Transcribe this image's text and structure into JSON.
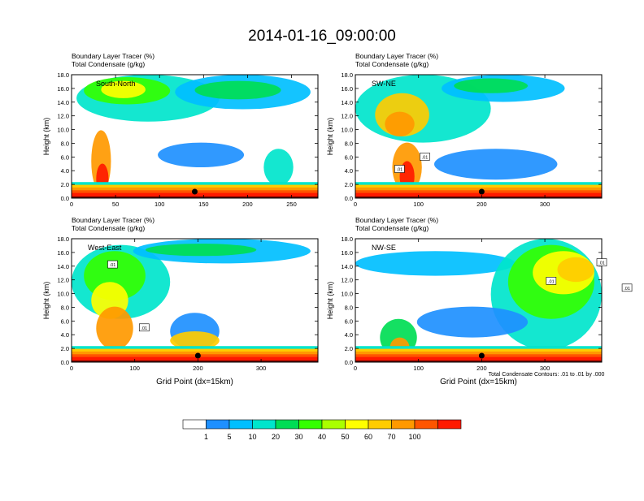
{
  "page_title": "2014-01-16_09:00:00",
  "chart_data": [
    {
      "type": "heatmap",
      "panel_label": "South-North",
      "title_line1": "Boundary Layer Tracer   (%)",
      "title_line2": "Total Condensate   (g/kg)",
      "ylabel": "Height (km)",
      "xlabel": "",
      "xlim": [
        0,
        280
      ],
      "ylim": [
        0,
        18
      ],
      "x_ticks": [
        "0",
        "50",
        "100",
        "150",
        "200",
        "250"
      ],
      "y_ticks": [
        "0.0",
        "2.0",
        "4.0",
        "6.0",
        "8.0",
        "10.0",
        "12.0",
        "14.0",
        "16.0",
        "18.0"
      ],
      "marker_x": 140,
      "contour_labels": []
    },
    {
      "type": "heatmap",
      "panel_label": "SW-NE",
      "title_line1": "Boundary Layer Tracer   (%)",
      "title_line2": "Total Condensate   (g/kg)",
      "ylabel": "Height (km)",
      "xlabel": "",
      "xlim": [
        0,
        390
      ],
      "ylim": [
        0,
        18
      ],
      "x_ticks": [
        "0",
        "100",
        "200",
        "300"
      ],
      "y_ticks": [
        "0.0",
        "2.0",
        "4.0",
        "6.0",
        "8.0",
        "10.0",
        "12.0",
        "14.0",
        "16.0",
        "18.0"
      ],
      "marker_x": 200,
      "contour_labels": [
        {
          "text": ".01",
          "x": 110,
          "y": 6.0
        },
        {
          "text": ".01",
          "x": 70,
          "y": 4.2
        }
      ]
    },
    {
      "type": "heatmap",
      "panel_label": "West-East",
      "title_line1": "Boundary Layer Tracer   (%)",
      "title_line2": "Total Condensate   (g/kg)",
      "ylabel": "Height (km)",
      "xlabel": "Grid Point (dx=15km)",
      "xlim": [
        0,
        390
      ],
      "ylim": [
        0,
        18
      ],
      "x_ticks": [
        "0",
        "100",
        "200",
        "300"
      ],
      "y_ticks": [
        "0.0",
        "2.0",
        "4.0",
        "6.0",
        "8.0",
        "10.0",
        "12.0",
        "14.0",
        "16.0",
        "18.0"
      ],
      "marker_x": 200,
      "contour_labels": [
        {
          "text": ".01",
          "x": 65,
          "y": 14.2
        },
        {
          "text": ".01",
          "x": 115,
          "y": 5.0
        }
      ]
    },
    {
      "type": "heatmap",
      "panel_label": "NW-SE",
      "title_line1": "Boundary Layer Tracer   (%)",
      "title_line2": "Total Condensate   (g/kg)",
      "ylabel": "Height (km)",
      "xlabel": "Grid Point (dx=15km)",
      "xlim": [
        0,
        390
      ],
      "ylim": [
        0,
        18
      ],
      "x_ticks": [
        "0",
        "100",
        "200",
        "300"
      ],
      "y_ticks": [
        "0.0",
        "2.0",
        "4.0",
        "6.0",
        "8.0",
        "10.0",
        "12.0",
        "14.0",
        "16.0",
        "18.0"
      ],
      "marker_x": 200,
      "contour_labels": [
        {
          "text": ".01",
          "x": 390,
          "y": 14.5
        },
        {
          "text": ".01",
          "x": 310,
          "y": 11.8
        },
        {
          "text": ".01",
          "x": 430,
          "y": 10.8
        }
      ]
    }
  ],
  "contour_note": "Total Condensate Contours: .01 to .01 by .000",
  "colorbar": {
    "labels": [
      "1",
      "5",
      "10",
      "20",
      "30",
      "40",
      "50",
      "60",
      "70",
      "100"
    ],
    "colors": [
      "#ffffff",
      "#1e90ff",
      "#00bfff",
      "#00e5cc",
      "#00dd55",
      "#33ff00",
      "#aaff00",
      "#ffff00",
      "#ffcc00",
      "#ff9900",
      "#ff5500",
      "#ff1a00"
    ]
  }
}
